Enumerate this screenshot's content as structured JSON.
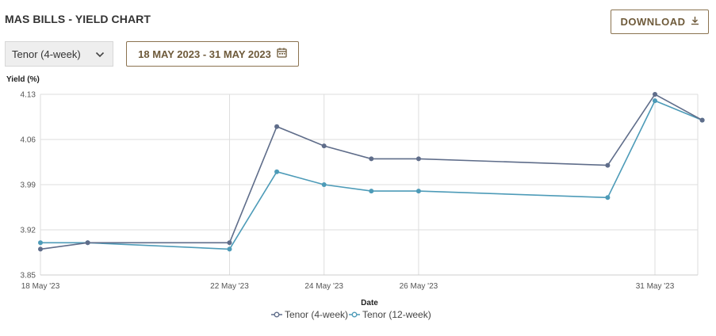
{
  "header": {
    "title": "MAS BILLS - YIELD CHART",
    "download_label": "DOWNLOAD"
  },
  "controls": {
    "tenor_selected": "Tenor (4-week)",
    "date_range": "18 MAY 2023 - 31 MAY 2023"
  },
  "icons": {
    "download": "download-icon",
    "dropdown": "chevron-down-icon",
    "calendar": "calendar-icon"
  },
  "colors": {
    "accent": "#8b7350",
    "series_4week": "#5f6d8a",
    "series_12week": "#4d9bb8",
    "grid": "#dddddd"
  },
  "chart_data": {
    "type": "line",
    "xlabel": "Date",
    "ylabel": "Yield (%)",
    "ylim": [
      3.85,
      4.13
    ],
    "yticks": [
      "4.13",
      "4.06",
      "3.99",
      "3.92",
      "3.85"
    ],
    "x_range": [
      "2023-05-18",
      "2023-05-31"
    ],
    "x_ticks": [
      {
        "date": "2023-05-18",
        "label": "18 May '23"
      },
      {
        "date": "2023-05-22",
        "label": "22 May '23"
      },
      {
        "date": "2023-05-24",
        "label": "24 May '23"
      },
      {
        "date": "2023-05-26",
        "label": "26 May '23"
      },
      {
        "date": "2023-05-31",
        "label": "31 May '23"
      }
    ],
    "grid": true,
    "legend_position": "bottom-center",
    "x": [
      "2023-05-18",
      "2023-05-19",
      "2023-05-22",
      "2023-05-23",
      "2023-05-24",
      "2023-05-25",
      "2023-05-26",
      "2023-05-30",
      "2023-05-31",
      "2023-06-01"
    ],
    "series": [
      {
        "name": "Tenor (4-week)",
        "values": [
          3.89,
          3.9,
          3.9,
          4.08,
          4.05,
          4.03,
          4.03,
          4.02,
          4.13,
          4.09
        ]
      },
      {
        "name": "Tenor (12-week)",
        "values": [
          3.9,
          3.9,
          3.89,
          4.01,
          3.99,
          3.98,
          3.98,
          3.97,
          4.12,
          4.09
        ]
      }
    ]
  }
}
